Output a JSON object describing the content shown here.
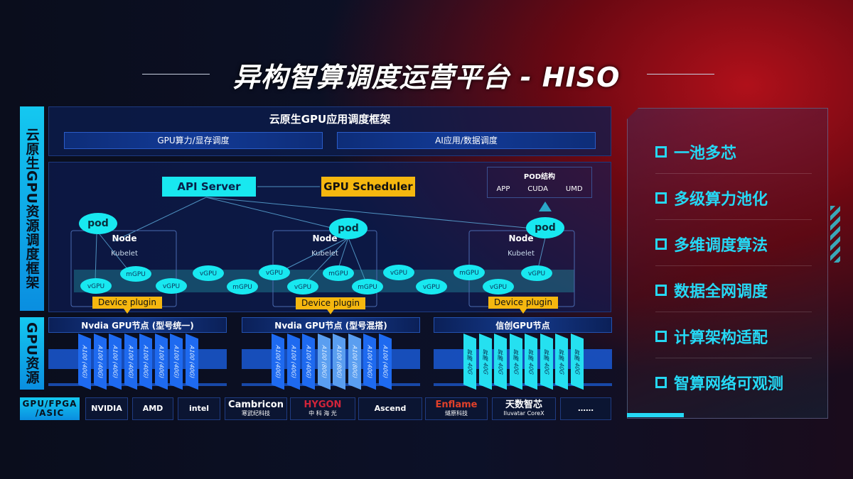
{
  "title": "异构智算调度运营平台 - HISO",
  "side_labels": {
    "framework": "云原生GPU资源调度框架",
    "resources": "GPU资源",
    "hardware": "GPU/FPGA /ASIC"
  },
  "top": {
    "title": "云原生GPU应用调度框架",
    "left_bar": "GPU算力/显存调度",
    "right_bar": "AI应用/数据调度"
  },
  "diagram": {
    "api_server": "API Server",
    "gpu_scheduler": "GPU Scheduler",
    "pod_structure": {
      "title": "POD结构",
      "items": [
        "APP",
        "CUDA",
        "UMD"
      ]
    },
    "pod": "pod",
    "node": "Node",
    "kubelet": "Kubelet",
    "device_plugin": "Device plugin",
    "units": [
      "vGPU",
      "mGPU",
      "vGPU",
      "vGPU",
      "mGPU",
      "vGPU",
      "vGPU",
      "mGPU",
      "mGPU",
      "vGPU",
      "vGPU",
      "mGPU",
      "vGPU",
      "vGPU"
    ]
  },
  "gpu_nodes": [
    {
      "title": "Nvdia GPU节点 (型号统一)",
      "chips": [
        "A100 (40G)",
        "A100 (40G)",
        "A100 (40G)",
        "A100 (40G)",
        "A100 (40G)",
        "A100 (40G)",
        "A100 (40G)",
        "A100 (40G)"
      ]
    },
    {
      "title": "Nvdia GPU节点 (型号混搭)",
      "chips": [
        "A100 (40G)",
        "A100 (40G)",
        "A100 (40G)",
        "A100 (80G)",
        "A100 (80G)",
        "A100 (80G)",
        "A100 (40G)",
        "A100 (40G)"
      ]
    },
    {
      "title": "信创GPU节点",
      "chips": [
        "昇腾 40G",
        "昇腾 40G",
        "昇腾 40G",
        "昇腾 40G",
        "昇腾 40G",
        "昇腾 40G",
        "昇腾 40G",
        "昇腾 40G"
      ]
    }
  ],
  "vendors": [
    {
      "name": "NVIDIA"
    },
    {
      "name": "AMD"
    },
    {
      "name": "intel"
    },
    {
      "name": "Cambricon",
      "sub": "寒武纪科技"
    },
    {
      "name": "HYGON",
      "sub": "中 科 海 光"
    },
    {
      "name": "Ascend"
    },
    {
      "name": "Enflame",
      "sub": "燧原科技"
    },
    {
      "name": "天数智芯",
      "sub": "Iluvatar CoreX"
    },
    {
      "name": "……"
    }
  ],
  "features": [
    "一池多芯",
    "多级算力池化",
    "多维调度算法",
    "数据全网调度",
    "计算架构适配",
    "智算网络可观测"
  ],
  "colors": {
    "cyan": "#18e8f0",
    "yellow": "#f5b70f",
    "blue": "#1a5ee0",
    "red": "#b0101a"
  }
}
